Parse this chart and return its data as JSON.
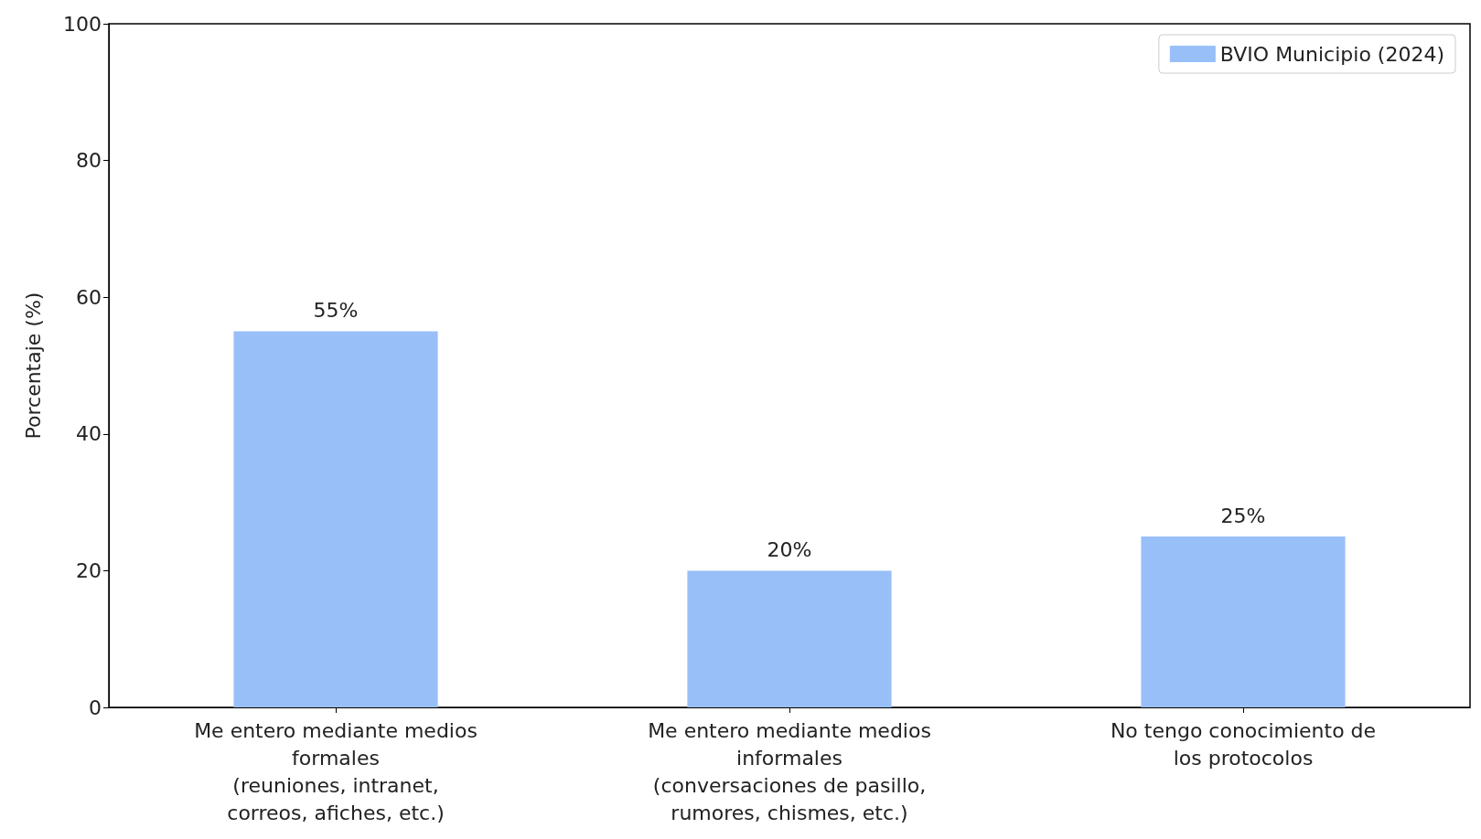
{
  "chart_data": {
    "type": "bar",
    "ylabel": "Porcentaje (%)",
    "categories": [
      "Me entero mediante medios\nformales\n(reuniones, intranet,\ncorreos, afiches, etc.)",
      "Me entero mediante medios\ninformales\n(conversaciones de pasillo,\nrumores, chismes, etc.)",
      "No tengo conocimiento de\nlos protocolos"
    ],
    "series": [
      {
        "name": "BVIO Municipio (2024)",
        "color": "#99bff9",
        "values": [
          55,
          20,
          25
        ],
        "value_labels": [
          "55%",
          "20%",
          "25%"
        ]
      }
    ],
    "ylim": [
      0,
      100
    ],
    "yticks": [
      0,
      20,
      40,
      60,
      80,
      100
    ],
    "grid": false,
    "legend": "top right"
  }
}
